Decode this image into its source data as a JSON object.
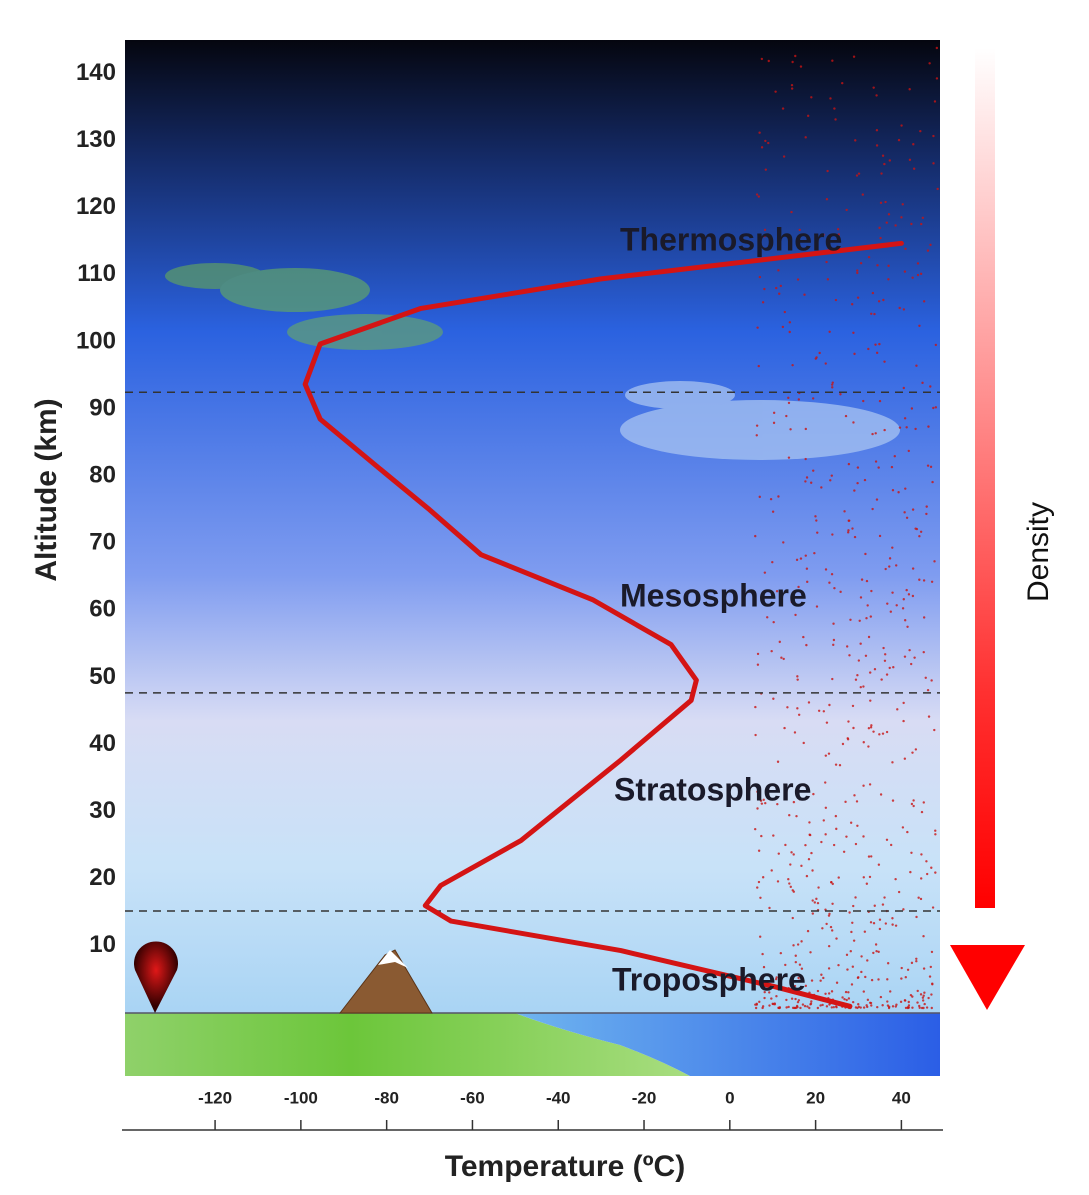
{
  "chart_data": {
    "type": "line",
    "x_label": "Temperature (ºC)",
    "y_label": "Altitude (km)",
    "x": [
      28,
      10,
      -25.4,
      -65,
      -71,
      -67.4,
      -48.7,
      -25.4,
      -9,
      -7.8,
      -13.7,
      -32,
      -58,
      -70,
      -81.4,
      -95.5,
      -99,
      -95.5,
      -72,
      -30,
      40
    ],
    "values": [
      1,
      4,
      9.3,
      13.7,
      16,
      19,
      25.7,
      37.7,
      46.6,
      49.6,
      54.9,
      61.6,
      68.3,
      75,
      81,
      88.5,
      93.7,
      99.7,
      105,
      109.4,
      114.7
    ],
    "color": "#d41414",
    "xlim": [
      -141,
      49
    ],
    "ylim": [
      0,
      145
    ],
    "xticks": [
      -120,
      -100,
      -80,
      -60,
      -40,
      -20,
      0,
      20,
      40
    ],
    "yticks": [
      10,
      20,
      30,
      40,
      50,
      60,
      70,
      80,
      90,
      100,
      110,
      120,
      130,
      140
    ],
    "layers": [
      "Thermosphere",
      "Mesosphere",
      "Stratosphere",
      "Troposphere"
    ],
    "boundaries": [
      92.5,
      47.7,
      15.2
    ],
    "density_label": "Density"
  }
}
